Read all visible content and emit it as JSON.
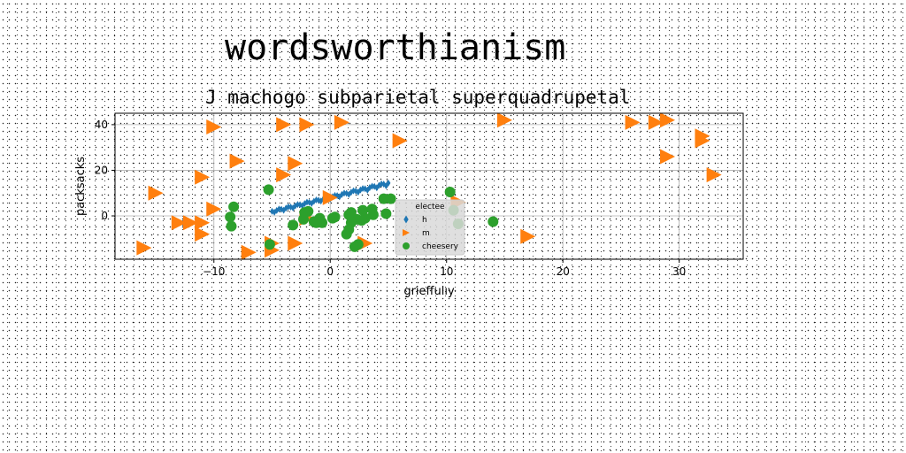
{
  "page": {
    "title": "wordsworthianism"
  },
  "chart_data": {
    "type": "scatter",
    "title": "J machogo subparietal superquadrupetal",
    "xlabel": "grieffulıy",
    "ylabel": "packsacks",
    "xlim": [
      -18.5,
      35.5
    ],
    "ylim": [
      -19,
      45
    ],
    "xticks": [
      -10,
      0,
      10,
      20,
      30
    ],
    "yticks": [
      0,
      20,
      40
    ],
    "grid": true,
    "legend": {
      "title": "electee",
      "placement": "center"
    },
    "colors": {
      "h": "#1f77b4",
      "m": "#ff7f0e",
      "cheesery": "#2ca02c"
    },
    "series": [
      {
        "name": "h",
        "marker": "diamond",
        "x": [
          -5.0,
          -4.6,
          -4.2,
          -3.8,
          -3.4,
          -3.0,
          -2.6,
          -2.2,
          -1.8,
          -1.4,
          -1.0,
          -0.6,
          -0.2,
          0.2,
          0.6,
          1.0,
          1.4,
          1.8,
          2.2,
          2.6,
          3.0,
          3.4,
          3.8,
          4.2,
          4.6,
          5.0,
          -4.8,
          -4.0,
          -3.2,
          -2.4,
          -1.6,
          -0.8,
          0.0,
          0.8,
          1.6,
          2.4,
          3.2,
          4.0,
          4.8,
          -4.4,
          -3.6,
          -2.8,
          -2.0,
          -1.2,
          -0.4,
          0.4,
          1.2,
          2.0,
          2.8,
          3.6,
          4.4
        ],
        "y": [
          2.0,
          2.4,
          2.9,
          3.4,
          3.9,
          4.4,
          4.9,
          5.4,
          5.9,
          6.4,
          6.9,
          7.4,
          7.9,
          8.4,
          8.9,
          9.4,
          9.9,
          10.4,
          10.9,
          11.4,
          11.9,
          12.4,
          12.9,
          13.4,
          13.9,
          14.4,
          1.6,
          2.5,
          3.5,
          4.5,
          5.5,
          6.5,
          7.4,
          8.4,
          9.4,
          10.4,
          11.3,
          12.3,
          13.2,
          3.0,
          4.0,
          5.0,
          6.0,
          7.0,
          8.0,
          9.0,
          10.0,
          11.0,
          12.0,
          13.0,
          14.0
        ]
      },
      {
        "name": "m",
        "marker": "triangle-right",
        "x": [
          -10,
          -4,
          -2,
          1,
          6,
          15,
          26,
          28,
          29,
          32,
          32,
          29,
          33,
          -8,
          -3,
          -4,
          -11,
          -15,
          -10,
          -12,
          -13,
          -11,
          -11,
          -16,
          -7,
          -5,
          -3,
          -5,
          0,
          3,
          11,
          17,
          -2
        ],
        "y": [
          39,
          40,
          40,
          41,
          33,
          42,
          41,
          41,
          42,
          35,
          33,
          26,
          18,
          24,
          23,
          18,
          17,
          10,
          3,
          -3,
          -3,
          -3,
          -8,
          -14,
          -16,
          -15,
          -12,
          -12,
          8,
          -12,
          6,
          -9,
          -1
        ],
        "sizes": [
          17,
          17,
          17,
          17,
          17,
          17,
          17,
          17,
          17,
          17,
          17,
          17,
          17,
          17,
          17,
          17,
          17,
          17,
          17,
          17,
          17,
          17,
          17,
          17,
          17,
          17,
          17,
          17,
          17,
          17,
          17,
          17,
          17
        ]
      },
      {
        "name": "cheesery",
        "marker": "circle",
        "x": [
          -5.3,
          -8.3,
          -8.6,
          -8.5,
          -3.2,
          -2.3,
          -1.4,
          -0.7,
          0.4,
          1.6,
          2.3,
          2.8,
          3.6,
          4.8,
          3.7,
          1.8,
          1.6,
          1.4,
          2.4,
          2.1,
          10.3,
          10.6,
          11.0,
          14.0,
          -5.2,
          -1.9,
          -0.9,
          -2.2,
          5.2,
          3.0,
          1.8,
          4.6,
          0.2,
          -1.2,
          2.7
        ],
        "y": [
          11.5,
          4.0,
          -0.5,
          -4.5,
          -4.0,
          -1.5,
          -2.5,
          -3.0,
          -0.5,
          0.5,
          -1.5,
          2.5,
          3.0,
          1.0,
          0.5,
          -3.0,
          -6.0,
          -8.0,
          -12.5,
          -13.5,
          10.5,
          2.5,
          -3.5,
          -2.5,
          -12.5,
          2.0,
          -1.0,
          1.5,
          7.5,
          -1.0,
          1.5,
          7.5,
          -1.0,
          -3.0,
          -2.0
        ],
        "sizes": [
          12,
          12,
          12,
          12,
          12,
          12,
          12,
          12,
          12,
          12,
          12,
          12,
          12,
          12,
          12,
          12,
          12,
          12,
          12,
          12,
          12,
          12,
          12,
          12,
          12,
          12,
          12,
          12,
          12,
          12,
          12,
          12,
          12,
          12,
          12
        ]
      }
    ]
  }
}
